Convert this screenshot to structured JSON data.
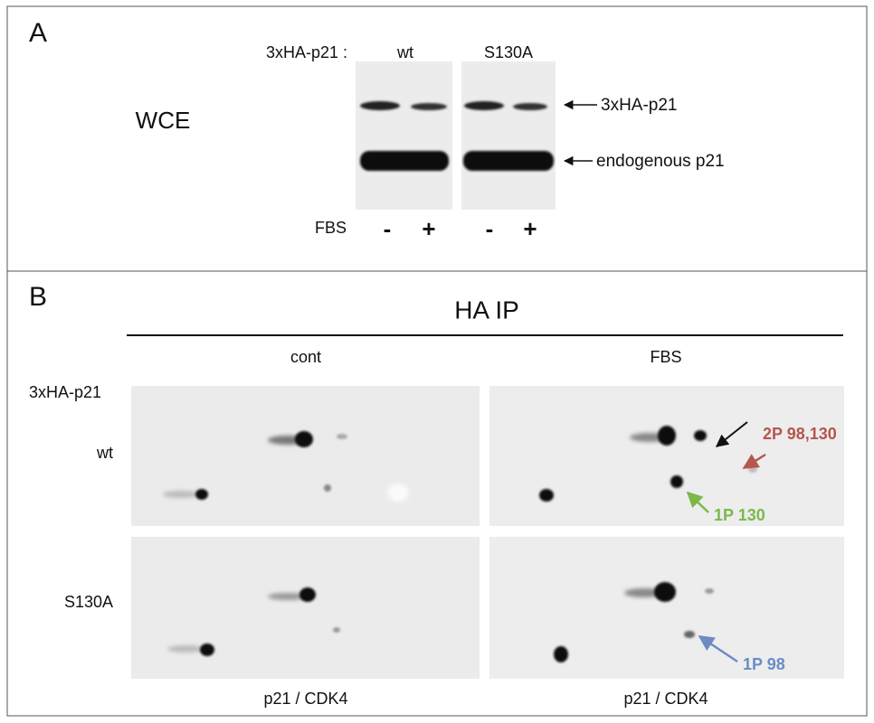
{
  "panel_a": {
    "label": "A",
    "lane_header": "3xHA-p21 :",
    "groups": [
      "wt",
      "S130A"
    ],
    "row_label": "WCE",
    "bands": [
      "3xHA-p21",
      "endogenous p21"
    ],
    "treatment_label": "FBS",
    "lanes": [
      "-",
      "+",
      "-",
      "+"
    ]
  },
  "panel_b": {
    "label": "B",
    "title": "HA IP",
    "columns": [
      "cont",
      "FBS"
    ],
    "construct_label": "3xHA-p21",
    "rows": [
      "wt",
      "S130A"
    ],
    "annotations": [
      {
        "text": "2P 98,130",
        "color": "#b5564f"
      },
      {
        "text": "1P 130",
        "color": "#7cb84a"
      },
      {
        "text": "1P 98",
        "color": "#6b8cc4"
      }
    ],
    "x_labels": [
      "p21 / CDK4",
      "p21 / CDK4"
    ]
  }
}
